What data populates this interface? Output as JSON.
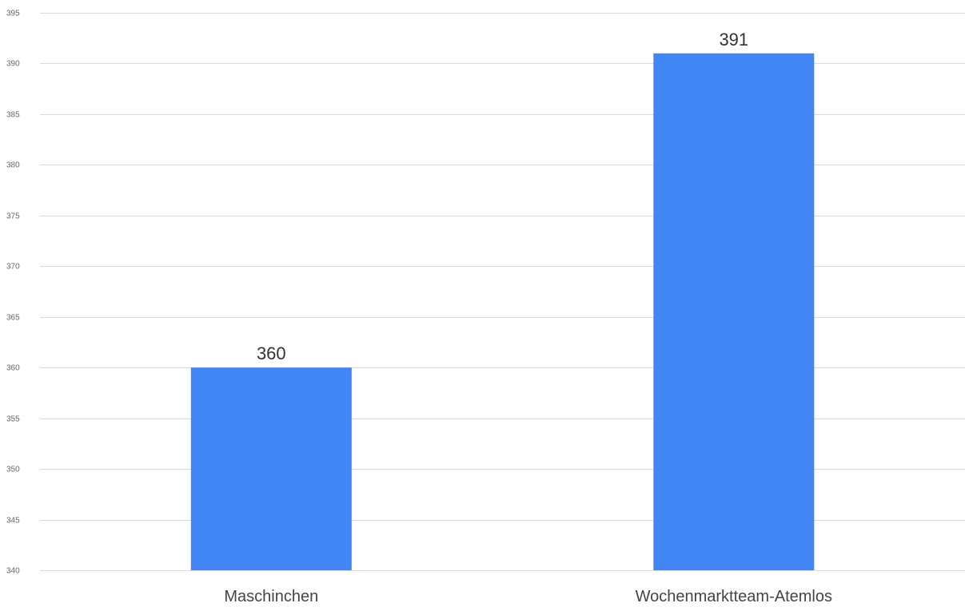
{
  "chart_data": {
    "type": "bar",
    "title": "",
    "xlabel": "",
    "ylabel": "",
    "categories": [
      "Maschinchen",
      "Wochenmarktteam-Atemlos"
    ],
    "values": [
      360,
      391
    ],
    "data_labels": [
      "360",
      "391"
    ],
    "ylim": [
      340,
      395
    ],
    "y_ticks": [
      340,
      345,
      350,
      355,
      360,
      365,
      370,
      375,
      380,
      385,
      390,
      395
    ],
    "grid": true,
    "legend": "none",
    "bar_color": "#4285f4"
  }
}
